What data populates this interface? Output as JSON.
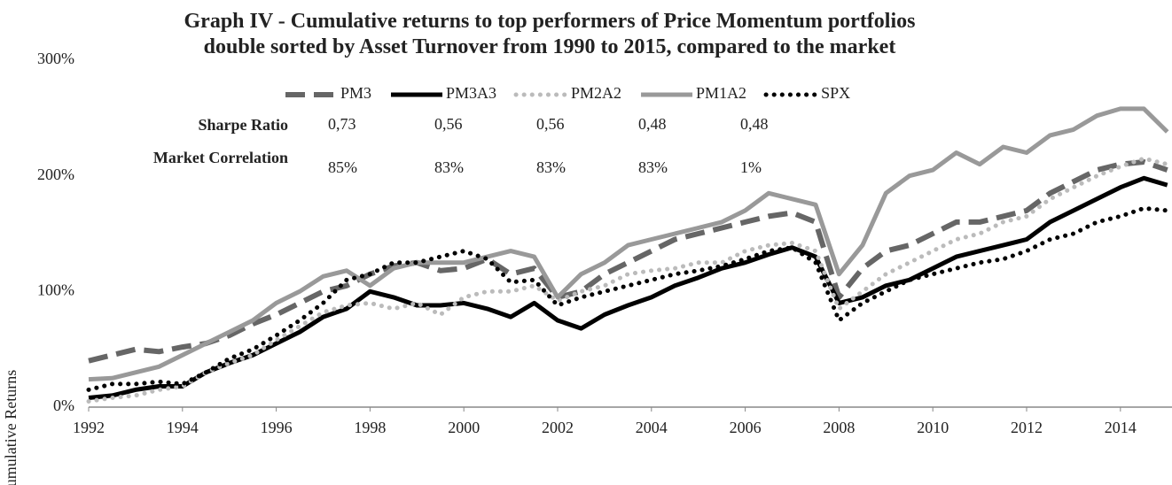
{
  "chart_data": {
    "type": "line",
    "title": "Graph IV - Cumulative returns to top performers of Price Momentum portfolios double sorted by Asset Turnover from 1990 to 2015, compared to the market",
    "y_label": "Cumulative Returns",
    "legend": "top",
    "grid": false,
    "xlim": [
      1992,
      2015.1
    ],
    "xticks": [
      1992,
      1994,
      1996,
      1998,
      2000,
      2002,
      2004,
      2006,
      2008,
      2010,
      2012,
      2014
    ],
    "ylim": [
      0,
      300
    ],
    "yticks": [
      {
        "value": 0,
        "label": "0%"
      },
      {
        "value": 100,
        "label": "100%"
      },
      {
        "value": 200,
        "label": "200%"
      },
      {
        "value": 300,
        "label": "300%"
      }
    ],
    "x": [
      1992,
      1992.5,
      1993,
      1993.5,
      1994,
      1994.5,
      1995,
      1995.5,
      1996,
      1996.5,
      1997,
      1997.5,
      1998,
      1998.5,
      1999,
      1999.5,
      2000,
      2000.5,
      2001,
      2001.5,
      2002,
      2002.5,
      2003,
      2003.5,
      2004,
      2004.5,
      2005,
      2005.5,
      2006,
      2006.5,
      2007,
      2007.5,
      2008,
      2008.5,
      2009,
      2009.5,
      2010,
      2010.5,
      2011,
      2011.5,
      2012,
      2012.5,
      2013,
      2013.5,
      2014,
      2014.5,
      2015
    ],
    "series": [
      {
        "name": "PM3",
        "color": "#666666",
        "style": "dashed",
        "values": [
          40,
          45,
          50,
          48,
          52,
          55,
          62,
          72,
          80,
          90,
          100,
          105,
          115,
          122,
          125,
          118,
          120,
          128,
          115,
          120,
          95,
          100,
          115,
          125,
          135,
          145,
          150,
          155,
          160,
          165,
          168,
          160,
          95,
          120,
          135,
          140,
          150,
          160,
          160,
          165,
          170,
          185,
          195,
          205,
          210,
          212,
          205
        ]
      },
      {
        "name": "PM3A3",
        "color": "#000000",
        "style": "solid",
        "values": [
          8,
          10,
          15,
          18,
          18,
          30,
          38,
          45,
          55,
          65,
          78,
          85,
          100,
          95,
          88,
          88,
          90,
          85,
          78,
          90,
          75,
          68,
          80,
          88,
          95,
          105,
          112,
          120,
          125,
          132,
          138,
          130,
          90,
          95,
          105,
          110,
          120,
          130,
          135,
          140,
          145,
          160,
          170,
          180,
          190,
          198,
          192
        ]
      },
      {
        "name": "PM2A2",
        "color": "#bbbbbb",
        "style": "dotted",
        "values": [
          5,
          8,
          10,
          15,
          18,
          30,
          38,
          45,
          58,
          70,
          82,
          88,
          90,
          85,
          90,
          80,
          95,
          100,
          100,
          105,
          92,
          100,
          105,
          115,
          118,
          120,
          125,
          125,
          135,
          140,
          142,
          135,
          85,
          100,
          115,
          125,
          135,
          145,
          150,
          160,
          165,
          180,
          190,
          200,
          208,
          215,
          210
        ]
      },
      {
        "name": "PM1A2",
        "color": "#999999",
        "style": "solid",
        "values": [
          24,
          25,
          30,
          35,
          45,
          55,
          65,
          75,
          90,
          100,
          113,
          118,
          105,
          120,
          125,
          125,
          125,
          130,
          135,
          130,
          95,
          115,
          125,
          140,
          145,
          150,
          155,
          160,
          170,
          185,
          180,
          175,
          115,
          140,
          185,
          200,
          205,
          220,
          210,
          225,
          220,
          235,
          240,
          252,
          258,
          258,
          238
        ]
      },
      {
        "name": "SPX",
        "color": "#000000",
        "style": "dotted",
        "values": [
          15,
          20,
          20,
          22,
          20,
          30,
          42,
          50,
          62,
          75,
          90,
          110,
          115,
          125,
          125,
          130,
          135,
          128,
          108,
          110,
          88,
          95,
          100,
          105,
          110,
          115,
          118,
          122,
          128,
          135,
          138,
          125,
          75,
          90,
          100,
          110,
          115,
          120,
          125,
          128,
          135,
          145,
          150,
          160,
          165,
          172,
          170
        ]
      }
    ],
    "stats": [
      {
        "label": "Sharpe Ratio",
        "values": [
          "0,73",
          "0,56",
          "0,56",
          "0,48",
          "0,48"
        ]
      },
      {
        "label": "Market Correlation",
        "values": [
          "85%",
          "83%",
          "83%",
          "83%",
          "1%"
        ]
      }
    ]
  }
}
